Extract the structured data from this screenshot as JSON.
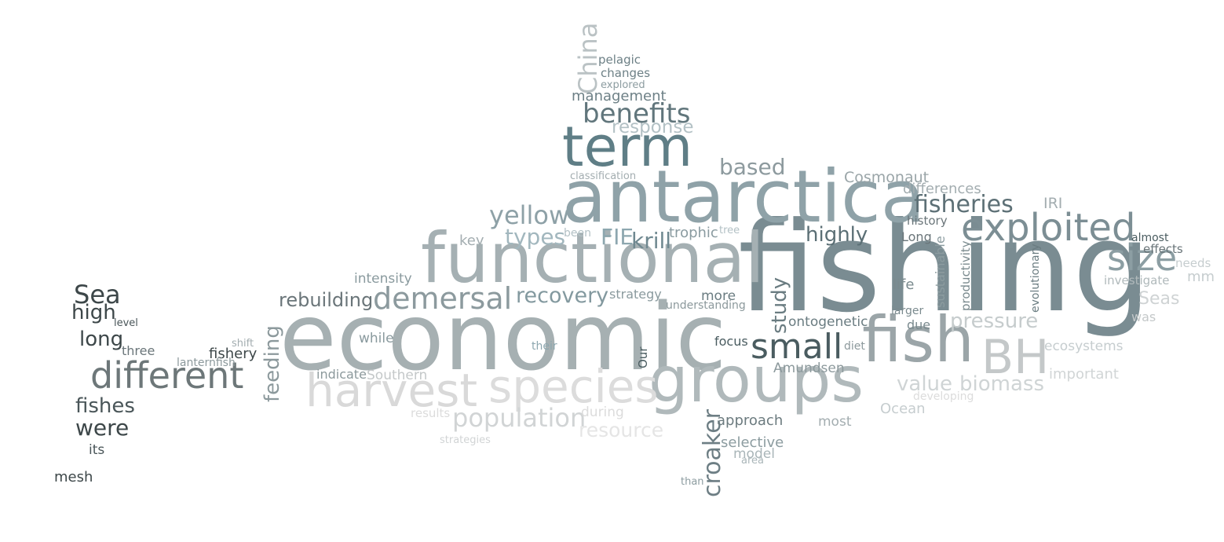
{
  "words": [
    {
      "key": "fishing",
      "text": "fishing",
      "color": "#7a8c92"
    },
    {
      "key": "economic",
      "text": "economic",
      "color": "#a6b0b2"
    },
    {
      "key": "antarctica",
      "text": "antarctica",
      "color": "#8fa2a8"
    },
    {
      "key": "functional",
      "text": "functional",
      "color": "#a5b0b3"
    },
    {
      "key": "groups",
      "text": "groups",
      "color": "#b0b9bb"
    },
    {
      "key": "term",
      "text": "term",
      "color": "#5f7e86"
    },
    {
      "key": "fish",
      "text": "fish",
      "color": "#9ba5a8"
    },
    {
      "key": "species",
      "text": "species",
      "color": "#dcdcdc"
    },
    {
      "key": "harvest",
      "text": "harvest",
      "color": "#d9d9d9"
    },
    {
      "key": "exploited",
      "text": "exploited",
      "color": "#7c8e94"
    },
    {
      "key": "size",
      "text": "size",
      "color": "#8c9ea3"
    },
    {
      "key": "BH",
      "text": "BH",
      "color": "#c4c8c9"
    },
    {
      "key": "different",
      "text": "different",
      "color": "#6d7779"
    },
    {
      "key": "small",
      "text": "small",
      "color": "#4a5c60"
    },
    {
      "key": "demersal",
      "text": "demersal",
      "color": "#8c9a9e"
    },
    {
      "key": "population",
      "text": "population",
      "color": "#d1d4d5"
    },
    {
      "key": "benefits",
      "text": "benefits",
      "color": "#61767c"
    },
    {
      "key": "fisheries",
      "text": "fisheries",
      "color": "#5d7076"
    },
    {
      "key": "croaker",
      "text": "croaker",
      "color": "#6d7e84"
    },
    {
      "key": "yellow",
      "text": "yellow",
      "color": "#8ea1a7"
    },
    {
      "key": "recovery",
      "text": "recovery",
      "color": "#83999f"
    },
    {
      "key": "China",
      "text": "China",
      "color": "#bac2c4"
    },
    {
      "key": "Sea",
      "text": "Sea",
      "color": "#3d4749"
    },
    {
      "key": "based",
      "text": "based",
      "color": "#8d9a9e"
    },
    {
      "key": "types",
      "text": "types",
      "color": "#a2b7be"
    },
    {
      "key": "value",
      "text": "value",
      "color": "#cfd4d5"
    },
    {
      "key": "biomass",
      "text": "biomass",
      "color": "#cfd4d5"
    },
    {
      "key": "study",
      "text": "study",
      "color": "#6a7c81"
    },
    {
      "key": "fishes",
      "text": "fishes",
      "color": "#4a5659"
    },
    {
      "key": "were",
      "text": "were",
      "color": "#3d4749"
    },
    {
      "key": "feeding",
      "text": "feeding",
      "color": "#8c999c"
    },
    {
      "key": "rebuilding",
      "text": "rebuilding",
      "color": "#6a7579"
    },
    {
      "key": "pressure",
      "text": "pressure",
      "color": "#c6cccd"
    },
    {
      "key": "long",
      "text": "long",
      "color": "#3d4749"
    },
    {
      "key": "high",
      "text": "high",
      "color": "#3d4749"
    },
    {
      "key": "krill",
      "text": "krill",
      "color": "#6f8890"
    },
    {
      "key": "FIE",
      "text": "FIE",
      "color": "#8da7af"
    },
    {
      "key": "highly",
      "text": "highly",
      "color": "#5b6f75"
    },
    {
      "key": "resource",
      "text": "resource",
      "color": "#e5e5e5"
    },
    {
      "key": "response",
      "text": "response",
      "color": "#b3c1c5"
    },
    {
      "key": "Seas",
      "text": "Seas",
      "color": "#cfd3d4"
    },
    {
      "key": "Cosmonaut",
      "text": "Cosmonaut",
      "color": "#9aa5a8"
    },
    {
      "key": "management",
      "text": "management",
      "color": "#6d8086"
    },
    {
      "key": "approach",
      "text": "approach",
      "color": "#6c7b7f"
    },
    {
      "key": "selective",
      "text": "selective",
      "color": "#8c9ca0"
    },
    {
      "key": "differences",
      "text": "differences",
      "color": "#a3adb0"
    },
    {
      "key": "IRI",
      "text": "IRI",
      "color": "#a3adb0"
    },
    {
      "key": "model",
      "text": "model",
      "color": "#a9b5b8"
    },
    {
      "key": "Ocean",
      "text": "Ocean",
      "color": "#c6cdcf"
    },
    {
      "key": "important",
      "text": "important",
      "color": "#d1d5d6"
    },
    {
      "key": "ecosystems",
      "text": "ecosystems",
      "color": "#c6cdcf"
    },
    {
      "key": "trophic",
      "text": "trophic",
      "color": "#8a9ba0"
    },
    {
      "key": "intensity",
      "text": "intensity",
      "color": "#8a9a9e"
    },
    {
      "key": "ontogenetic",
      "text": "ontogenetic",
      "color": "#6a7c81"
    },
    {
      "key": "Amundsen",
      "text": "Amundsen",
      "color": "#8c999c"
    },
    {
      "key": "Southern",
      "text": "Southern",
      "color": "#c4c8c9"
    },
    {
      "key": "during",
      "text": "during",
      "color": "#dcdcdc"
    },
    {
      "key": "strategy",
      "text": "strategy",
      "color": "#8a9a9e"
    },
    {
      "key": "more",
      "text": "more",
      "color": "#6a7c81"
    },
    {
      "key": "pelagic",
      "text": "pelagic",
      "color": "#6d8086"
    },
    {
      "key": "changes",
      "text": "changes",
      "color": "#6d8086"
    },
    {
      "key": "explored",
      "text": "explored",
      "color": "#8c9ca0"
    },
    {
      "key": "classification",
      "text": "classification",
      "color": "#a3adb0"
    },
    {
      "key": "key",
      "text": "key",
      "color": "#a3adb0"
    },
    {
      "key": "been",
      "text": "been",
      "color": "#b3c1c5"
    },
    {
      "key": "tree",
      "text": "tree",
      "color": "#b3c1c5"
    },
    {
      "key": "understanding",
      "text": "understanding",
      "color": "#8c999c"
    },
    {
      "key": "life",
      "text": "life",
      "color": "#7a8a8e"
    },
    {
      "key": "larger",
      "text": "larger",
      "color": "#7a8a8e"
    },
    {
      "key": "due",
      "text": "due",
      "color": "#7a8a8e"
    },
    {
      "key": "history",
      "text": "history",
      "color": "#6a7579"
    },
    {
      "key": "Long",
      "text": "Long",
      "color": "#6a7579"
    },
    {
      "key": "sustainable",
      "text": "sustainable",
      "color": "#8c9ca0"
    },
    {
      "key": "productivity",
      "text": "productivity",
      "color": "#7a8a8e"
    },
    {
      "key": "evolutionary",
      "text": "evolutionary",
      "color": "#6a7c81"
    },
    {
      "key": "almost",
      "text": "almost",
      "color": "#4a5c60"
    },
    {
      "key": "effects",
      "text": "effects",
      "color": "#6a7579"
    },
    {
      "key": "needs",
      "text": "needs",
      "color": "#c6cdcf"
    },
    {
      "key": "mm",
      "text": "mm",
      "color": "#c6cdcf"
    },
    {
      "key": "investigate",
      "text": "investigate",
      "color": "#b0b9bb"
    },
    {
      "key": "was",
      "text": "was",
      "color": "#c4c8c9"
    },
    {
      "key": "developing",
      "text": "developing",
      "color": "#dcdcdc"
    },
    {
      "key": "most",
      "text": "most",
      "color": "#a3adb0"
    },
    {
      "key": "area",
      "text": "area",
      "color": "#a9b5b8"
    },
    {
      "key": "than",
      "text": "than",
      "color": "#8c9ca0"
    },
    {
      "key": "focus",
      "text": "focus",
      "color": "#4a5c60"
    },
    {
      "key": "diet",
      "text": "diet",
      "color": "#8c999c"
    },
    {
      "key": "Our",
      "text": "Our",
      "color": "#4a5c60"
    },
    {
      "key": "their",
      "text": "their",
      "color": "#8da7af"
    },
    {
      "key": "while",
      "text": "while",
      "color": "#8a9a9e"
    },
    {
      "key": "indicate",
      "text": "indicate",
      "color": "#8c999c"
    },
    {
      "key": "results",
      "text": "results",
      "color": "#dcdcdc"
    },
    {
      "key": "strategies",
      "text": "strategies",
      "color": "#d1d4d5"
    },
    {
      "key": "level",
      "text": "level",
      "color": "#4a5659"
    },
    {
      "key": "three",
      "text": "three",
      "color": "#6a7579"
    },
    {
      "key": "shift",
      "text": "shift",
      "color": "#a3adb0"
    },
    {
      "key": "fishery",
      "text": "fishery",
      "color": "#3d4749"
    },
    {
      "key": "lanternfish",
      "text": "lanternfish",
      "color": "#8c999c"
    },
    {
      "key": "its",
      "text": "its",
      "color": "#4a5659"
    },
    {
      "key": "mesh",
      "text": "mesh",
      "color": "#3d4749"
    }
  ]
}
